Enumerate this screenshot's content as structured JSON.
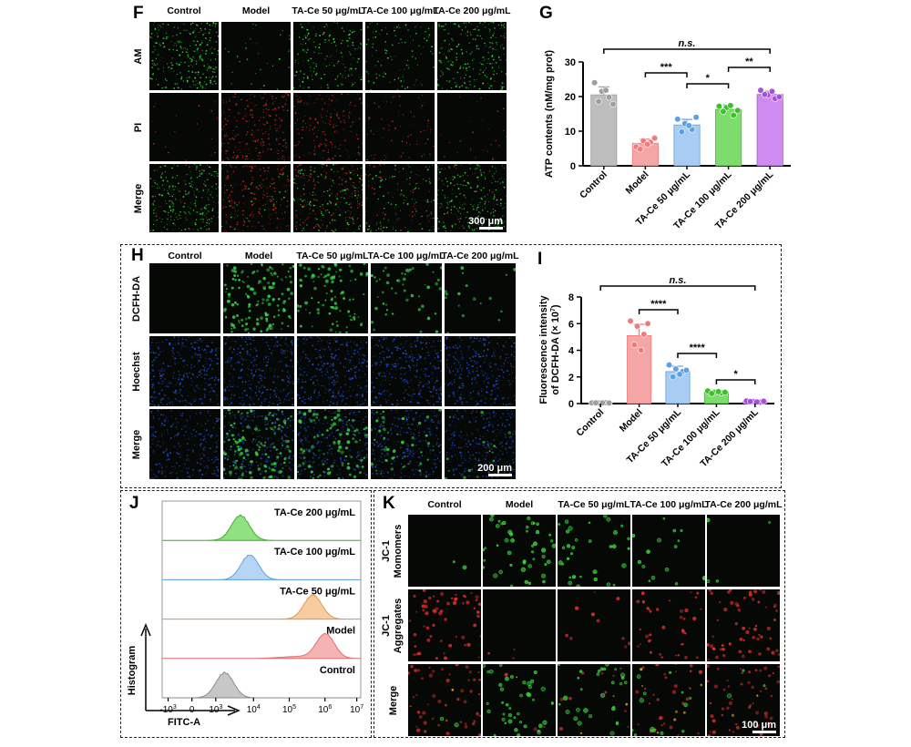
{
  "panels": {
    "F": {
      "label": "F",
      "columns": [
        "Control",
        "Model",
        "TA-Ce 50 μg/mL",
        "TA-Ce 100 μg/mL",
        "TA-Ce 200 μg/mL"
      ],
      "rows": [
        "AM",
        "PI",
        "Merge"
      ],
      "scale_bar": "300 μm"
    },
    "G": {
      "label": "G",
      "ylabel": "ATP contents (nM/mg prot)",
      "significance": [
        "n.s.",
        "***",
        "*",
        "**"
      ]
    },
    "H": {
      "label": "H",
      "columns": [
        "Control",
        "Model",
        "TA-Ce 50 μg/mL",
        "TA-Ce 100 μg/mL",
        "TA-Ce 200 μg/mL"
      ],
      "rows": [
        "DCFH-DA",
        "Hoechst",
        "Merge"
      ],
      "scale_bar": "200 μm"
    },
    "I": {
      "label": "I",
      "ylabel_line1": "Fluorescence intensity",
      "ylabel_line2": "of DCFH-DA (× 10",
      "ylabel_sup": "7",
      "ylabel_end": ")",
      "significance": [
        "n.s.",
        "****",
        "****",
        "*"
      ]
    },
    "J": {
      "label": "J",
      "ylabel": "Histogram",
      "xlabel": "FITC-A",
      "tracks": [
        "TA-Ce 200 μg/mL",
        "TA-Ce 100 μg/mL",
        "TA-Ce 50 μg/mL",
        "Model",
        "Control"
      ],
      "ticks": [
        "-10",
        "0",
        "10",
        "10",
        "10",
        "10",
        "10"
      ],
      "tick_sups": [
        "3",
        "",
        "3",
        "4",
        "5",
        "6",
        "7"
      ]
    },
    "K": {
      "label": "K",
      "columns": [
        "Control",
        "Model",
        "TA-Ce 50 μg/mL",
        "TA-Ce 100 μg/mL",
        "TA-Ce 200 μg/mL"
      ],
      "rows_line1": [
        "JC-1",
        "JC-1",
        "Merge"
      ],
      "rows_line2": [
        "Momomers",
        "Aggregates",
        ""
      ],
      "scale_bar": "100 μm"
    }
  },
  "colors": {
    "control": "#bdbdbd",
    "model": "#f4a6a6",
    "tace50": "#a9cdf2",
    "tace100": "#7ddc6b",
    "tace200": "#cf8cf0"
  },
  "chart_data": [
    {
      "type": "bar",
      "panel": "G",
      "categories": [
        "Control",
        "Model",
        "TA-Ce 50 μg/mL",
        "TA-Ce 100 μg/mL",
        "TA-Ce 200 μg/mL"
      ],
      "values": [
        20.5,
        6.5,
        11.8,
        16.3,
        20.6
      ],
      "errors": [
        2.3,
        1.2,
        1.6,
        1.3,
        0.9
      ],
      "points": [
        [
          24,
          21.5,
          19.8,
          18.6,
          21.8,
          17.8
        ],
        [
          5.5,
          7.2,
          6.8,
          4.8,
          6.2,
          8.0
        ],
        [
          13.5,
          12.2,
          10.5,
          9.8,
          11.6,
          14.0
        ],
        [
          17.2,
          16.8,
          14.6,
          15.7,
          17.4,
          16.0
        ],
        [
          21.8,
          20.5,
          19.4,
          20.6,
          21.5,
          19.9
        ]
      ],
      "ylabel": "ATP contents (nM/mg prot)",
      "ylim": [
        0,
        30
      ],
      "yticks": [
        0,
        10,
        20,
        30
      ],
      "significance": [
        {
          "from": 0,
          "to": 4,
          "label": "n.s."
        },
        {
          "from": 1,
          "to": 2,
          "label": "***"
        },
        {
          "from": 2,
          "to": 3,
          "label": "*"
        },
        {
          "from": 3,
          "to": 4,
          "label": "**"
        }
      ]
    },
    {
      "type": "bar",
      "panel": "I",
      "categories": [
        "Control",
        "Model",
        "TA-Ce 50 μg/mL",
        "TA-Ce 100 μg/mL",
        "TA-Ce 200 μg/mL"
      ],
      "values": [
        0.05,
        5.1,
        2.4,
        0.85,
        0.15
      ],
      "errors": [
        0.02,
        0.85,
        0.4,
        0.1,
        0.04
      ],
      "points": [
        [
          0.05,
          0.04,
          0.06,
          0.05,
          0.05,
          0.04
        ],
        [
          6.2,
          5.8,
          5.2,
          4.4,
          4.0,
          6.0
        ],
        [
          2.9,
          2.6,
          2.4,
          2.0,
          2.2,
          2.5
        ],
        [
          0.95,
          0.85,
          0.8,
          0.75,
          0.9,
          0.85
        ],
        [
          0.2,
          0.15,
          0.1,
          0.15,
          0.12,
          0.18
        ]
      ],
      "ylabel": "Fluorescence intensity of DCFH-DA (× 10⁷)",
      "ylim": [
        0,
        8
      ],
      "yticks": [
        0,
        2,
        4,
        6,
        8
      ],
      "significance": [
        {
          "from": 0,
          "to": 4,
          "label": "n.s."
        },
        {
          "from": 1,
          "to": 2,
          "label": "****"
        },
        {
          "from": 2,
          "to": 3,
          "label": "****"
        },
        {
          "from": 3,
          "to": 4,
          "label": "*"
        }
      ]
    },
    {
      "type": "area",
      "panel": "J",
      "xscale": "log (flow cytometry biexponential)",
      "series": [
        {
          "name": "TA-Ce 200 μg/mL",
          "peak": 2.3
        },
        {
          "name": "TA-Ce 100 μg/mL",
          "peak": 2.6
        },
        {
          "name": "TA-Ce 50 μg/mL",
          "peak": 4.6
        },
        {
          "name": "Model",
          "peak": 5.0
        },
        {
          "name": "Control",
          "peak": 1.8
        }
      ],
      "xlabel": "FITC-A",
      "ylabel": "Histogram"
    }
  ]
}
